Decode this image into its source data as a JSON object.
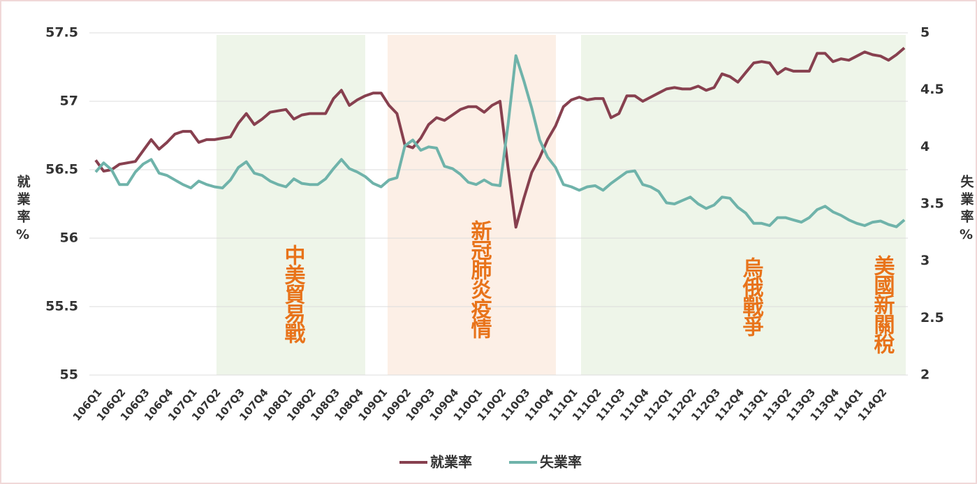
{
  "chart_data": {
    "type": "line",
    "categories": [
      "106Q1",
      null,
      null,
      "106Q2",
      null,
      null,
      "106Q3",
      null,
      null,
      "106Q4",
      null,
      null,
      "107Q1",
      null,
      null,
      "107Q2",
      null,
      null,
      "107Q3",
      null,
      null,
      "107Q4",
      null,
      null,
      "108Q1",
      null,
      null,
      "108Q2",
      null,
      null,
      "108Q3",
      null,
      null,
      "108Q4",
      null,
      null,
      "109Q1",
      null,
      null,
      "109Q2",
      null,
      null,
      "109Q3",
      null,
      null,
      "109Q4",
      null,
      null,
      "110Q1",
      null,
      null,
      "110Q2",
      null,
      null,
      "110Q3",
      null,
      null,
      "110Q4",
      null,
      null,
      "111Q1",
      null,
      null,
      "111Q2",
      null,
      null,
      "111Q3",
      null,
      null,
      "111Q4",
      null,
      null,
      "112Q1",
      null,
      null,
      "112Q2",
      null,
      null,
      "112Q3",
      null,
      null,
      "112Q4",
      null,
      null,
      "113Q1",
      null,
      null,
      "113Q2",
      null,
      null,
      "113Q3",
      null,
      null,
      "113Q4",
      null,
      null,
      "114Q1",
      null,
      null,
      "114Q2",
      null,
      null,
      null
    ],
    "series": [
      {
        "name": "就業率",
        "color": "#87404f",
        "values": [
          56.57,
          56.49,
          56.5,
          56.54,
          56.55,
          56.56,
          56.64,
          56.72,
          56.65,
          56.7,
          56.76,
          56.78,
          56.78,
          56.7,
          56.72,
          56.72,
          56.73,
          56.74,
          56.84,
          56.91,
          56.83,
          56.87,
          56.92,
          56.93,
          56.94,
          56.87,
          56.9,
          56.91,
          56.91,
          56.91,
          57.02,
          57.08,
          56.97,
          57.01,
          57.04,
          57.06,
          57.06,
          56.97,
          56.91,
          56.68,
          56.66,
          56.73,
          56.83,
          56.88,
          56.86,
          56.9,
          56.94,
          56.96,
          56.96,
          56.92,
          56.97,
          57.0,
          56.52,
          56.08,
          56.29,
          56.48,
          56.59,
          56.72,
          56.82,
          56.96,
          57.01,
          57.03,
          57.01,
          57.02,
          57.02,
          56.88,
          56.91,
          57.04,
          57.04,
          57.0,
          57.03,
          57.06,
          57.09,
          57.1,
          57.09,
          57.09,
          57.11,
          57.08,
          57.1,
          57.2,
          57.18,
          57.14,
          57.21,
          57.28,
          57.29,
          57.28,
          57.2,
          57.24,
          57.22,
          57.22,
          57.22,
          57.35,
          57.35,
          57.29,
          57.31,
          57.3,
          57.33,
          57.36,
          57.34,
          57.33,
          57.3,
          57.34,
          57.39
        ]
      },
      {
        "name": "失業率",
        "color": "#6fb3aa",
        "axis": "y2",
        "values": [
          3.78,
          3.86,
          3.8,
          3.67,
          3.67,
          3.78,
          3.85,
          3.89,
          3.77,
          3.75,
          3.71,
          3.67,
          3.64,
          3.7,
          3.67,
          3.65,
          3.64,
          3.71,
          3.82,
          3.87,
          3.77,
          3.75,
          3.7,
          3.67,
          3.65,
          3.72,
          3.68,
          3.67,
          3.67,
          3.72,
          3.81,
          3.89,
          3.81,
          3.78,
          3.74,
          3.68,
          3.65,
          3.71,
          3.73,
          4.01,
          4.06,
          3.97,
          4.0,
          3.99,
          3.83,
          3.81,
          3.76,
          3.69,
          3.67,
          3.71,
          3.67,
          3.66,
          4.19,
          4.8,
          4.58,
          4.34,
          4.06,
          3.91,
          3.82,
          3.67,
          3.65,
          3.62,
          3.65,
          3.66,
          3.62,
          3.68,
          3.73,
          3.78,
          3.79,
          3.67,
          3.65,
          3.61,
          3.51,
          3.5,
          3.53,
          3.56,
          3.5,
          3.46,
          3.49,
          3.56,
          3.55,
          3.47,
          3.42,
          3.33,
          3.33,
          3.31,
          3.38,
          3.38,
          3.36,
          3.34,
          3.38,
          3.45,
          3.48,
          3.43,
          3.4,
          3.36,
          3.33,
          3.31,
          3.34,
          3.35,
          3.32,
          3.3,
          3.36
        ]
      }
    ],
    "ylabel": "就業率%",
    "y2label": "失業率%",
    "ylim": [
      55,
      57.5
    ],
    "yticks": [
      55,
      55.5,
      56,
      56.5,
      57,
      57.5
    ],
    "y2lim": [
      2,
      5
    ],
    "y2ticks": [
      2,
      2.5,
      3,
      3.5,
      4,
      4.5,
      5
    ],
    "grid": true,
    "annotations": [
      "中美貿易戰",
      "新冠肺炎疫情",
      "烏俄戰爭",
      "美國新關稅"
    ]
  }
}
